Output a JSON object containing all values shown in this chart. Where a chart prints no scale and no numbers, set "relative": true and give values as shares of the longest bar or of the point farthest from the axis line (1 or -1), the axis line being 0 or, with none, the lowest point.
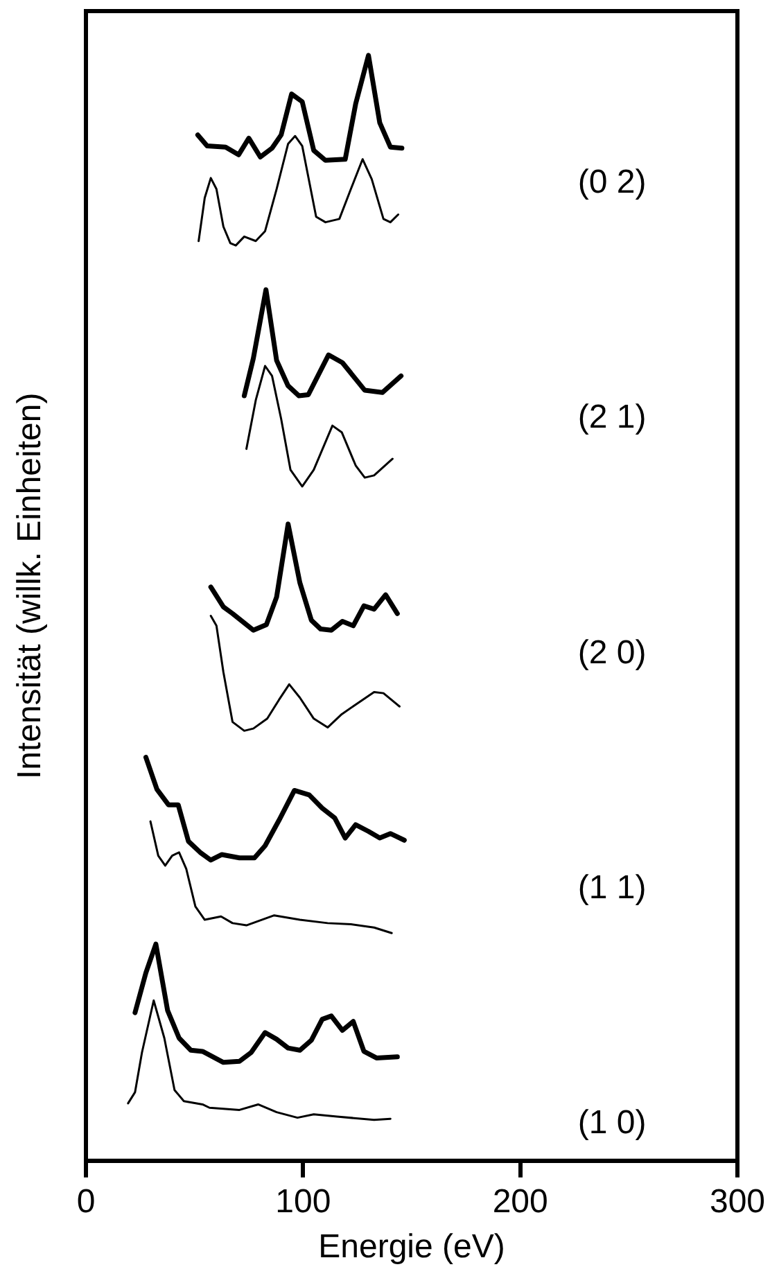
{
  "chart_data": {
    "type": "line",
    "relative": true,
    "xlabel": "Energie (eV)",
    "ylabel": "Intensität (willk. Einheiten)",
    "xlim": [
      0,
      300
    ],
    "xticks": [
      0,
      100,
      200,
      300
    ],
    "grid": false,
    "legend": false,
    "marker": "none",
    "line_style": "solid",
    "series": [
      {
        "color": "#000000",
        "x": [
          51.5,
          55.8,
          64.3,
          70.3,
          75,
          80.3,
          85.7,
          89.9,
          94.7,
          99.6,
          104.9,
          110.3,
          119.4,
          124.2,
          130.1,
          135.3,
          140.2,
          145.5
        ],
        "values": [
          0.928,
          0.918,
          0.917,
          0.91,
          0.925,
          0.908,
          0.916,
          0.928,
          0.965,
          0.958,
          0.914,
          0.905,
          0.906,
          0.956,
          1,
          0.939,
          0.917,
          0.916
        ]
      },
      {
        "color": "#000000",
        "x": [
          51.9,
          54.7,
          57.5,
          60.1,
          63.3,
          66.5,
          69,
          72.9,
          78.2,
          82.5,
          87.8,
          93.1,
          96.3,
          99.6,
          106,
          110.3,
          116.7,
          122,
          127.4,
          131.6,
          137,
          140.2,
          143.8
        ],
        "values": [
          0.832,
          0.871,
          0.889,
          0.879,
          0.845,
          0.83,
          0.828,
          0.836,
          0.832,
          0.841,
          0.879,
          0.92,
          0.927,
          0.918,
          0.854,
          0.849,
          0.852,
          0.879,
          0.906,
          0.888,
          0.852,
          0.849,
          0.856
        ]
      },
      {
        "color": "#000000",
        "x": [
          72.9,
          77.1,
          82.9,
          87.8,
          93.1,
          98.1,
          102.4,
          111.7,
          118.1,
          128.4,
          136.5,
          145.1
        ],
        "values": [
          0.692,
          0.726,
          0.788,
          0.724,
          0.701,
          0.692,
          0.693,
          0.729,
          0.722,
          0.697,
          0.695,
          0.71
        ]
      },
      {
        "color": "#000000",
        "x": [
          73.9,
          78.2,
          82.5,
          85.7,
          89.9,
          94.2,
          99.6,
          104.9,
          113.5,
          117.8,
          124.2,
          128.4,
          132.7,
          141.2
        ],
        "values": [
          0.644,
          0.688,
          0.719,
          0.71,
          0.671,
          0.625,
          0.61,
          0.625,
          0.665,
          0.659,
          0.629,
          0.618,
          0.62,
          0.635
        ]
      },
      {
        "color": "#000000",
        "x": [
          57.5,
          63.3,
          67.5,
          77.1,
          83.1,
          87.8,
          93.1,
          98.5,
          103.8,
          108.1,
          113,
          118.1,
          123.1,
          128,
          132.7,
          138,
          143.4
        ],
        "values": [
          0.519,
          0.501,
          0.495,
          0.48,
          0.485,
          0.51,
          0.576,
          0.523,
          0.489,
          0.481,
          0.48,
          0.488,
          0.484,
          0.502,
          0.499,
          0.512,
          0.495
        ]
      },
      {
        "color": "#000000",
        "x": [
          57.5,
          60.1,
          63.3,
          67.5,
          72.9,
          77.1,
          83.5,
          88.9,
          93.6,
          98.5,
          104.9,
          111.3,
          117.8,
          125.2,
          132.7,
          137,
          144.4
        ],
        "values": [
          0.493,
          0.484,
          0.442,
          0.397,
          0.389,
          0.391,
          0.4,
          0.417,
          0.431,
          0.419,
          0.4,
          0.392,
          0.404,
          0.414,
          0.424,
          0.423,
          0.411
        ]
      },
      {
        "color": "#000000",
        "x": [
          27.6,
          32.7,
          38,
          42.5,
          47.2,
          52.6,
          57.5,
          62.6,
          70.7,
          77.6,
          82.5,
          88.9,
          96,
          102.8,
          108.8,
          114.6,
          119.4,
          124.2,
          130.1,
          135.3,
          140.2,
          146.6
        ],
        "values": [
          0.365,
          0.336,
          0.322,
          0.322,
          0.289,
          0.279,
          0.272,
          0.277,
          0.274,
          0.274,
          0.285,
          0.308,
          0.335,
          0.331,
          0.319,
          0.31,
          0.292,
          0.304,
          0.298,
          0.292,
          0.296,
          0.29
        ]
      },
      {
        "color": "#000000",
        "x": [
          29.7,
          33.3,
          36.5,
          39.7,
          42.9,
          46.2,
          50.4,
          54.7,
          62.2,
          67.5,
          73.9,
          86.7,
          98.5,
          111.3,
          122,
          132.7,
          140.8
        ],
        "values": [
          0.307,
          0.276,
          0.267,
          0.276,
          0.279,
          0.264,
          0.23,
          0.218,
          0.221,
          0.215,
          0.213,
          0.222,
          0.218,
          0.215,
          0.214,
          0.211,
          0.206
        ]
      },
      {
        "color": "#000000",
        "x": [
          22.6,
          27.6,
          32.2,
          37.6,
          42.9,
          48.3,
          53.7,
          63.3,
          70.7,
          76.1,
          82.5,
          87.8,
          93.1,
          98.5,
          103.8,
          108.8,
          113,
          118.1,
          123.1,
          128,
          133.8,
          143.4
        ],
        "values": [
          0.134,
          0.17,
          0.196,
          0.136,
          0.111,
          0.1,
          0.099,
          0.089,
          0.09,
          0.098,
          0.116,
          0.11,
          0.102,
          0.1,
          0.109,
          0.128,
          0.131,
          0.118,
          0.126,
          0.099,
          0.093,
          0.094
        ]
      },
      {
        "color": "#000000",
        "x": [
          19.4,
          22.6,
          25.8,
          31.2,
          36.1,
          40.8,
          45.1,
          53.7,
          56.9,
          70.7,
          79.3,
          87.8,
          97.4,
          104.9,
          115.6,
          132.7,
          140.2
        ],
        "values": [
          0.052,
          0.062,
          0.098,
          0.145,
          0.111,
          0.064,
          0.054,
          0.051,
          0.048,
          0.046,
          0.051,
          0.044,
          0.039,
          0.042,
          0.04,
          0.037,
          0.038
        ]
      }
    ],
    "annotations": [
      "(0 2)",
      "(2 1)",
      "(2 0)",
      "(1 1)",
      "(1 0)"
    ]
  }
}
